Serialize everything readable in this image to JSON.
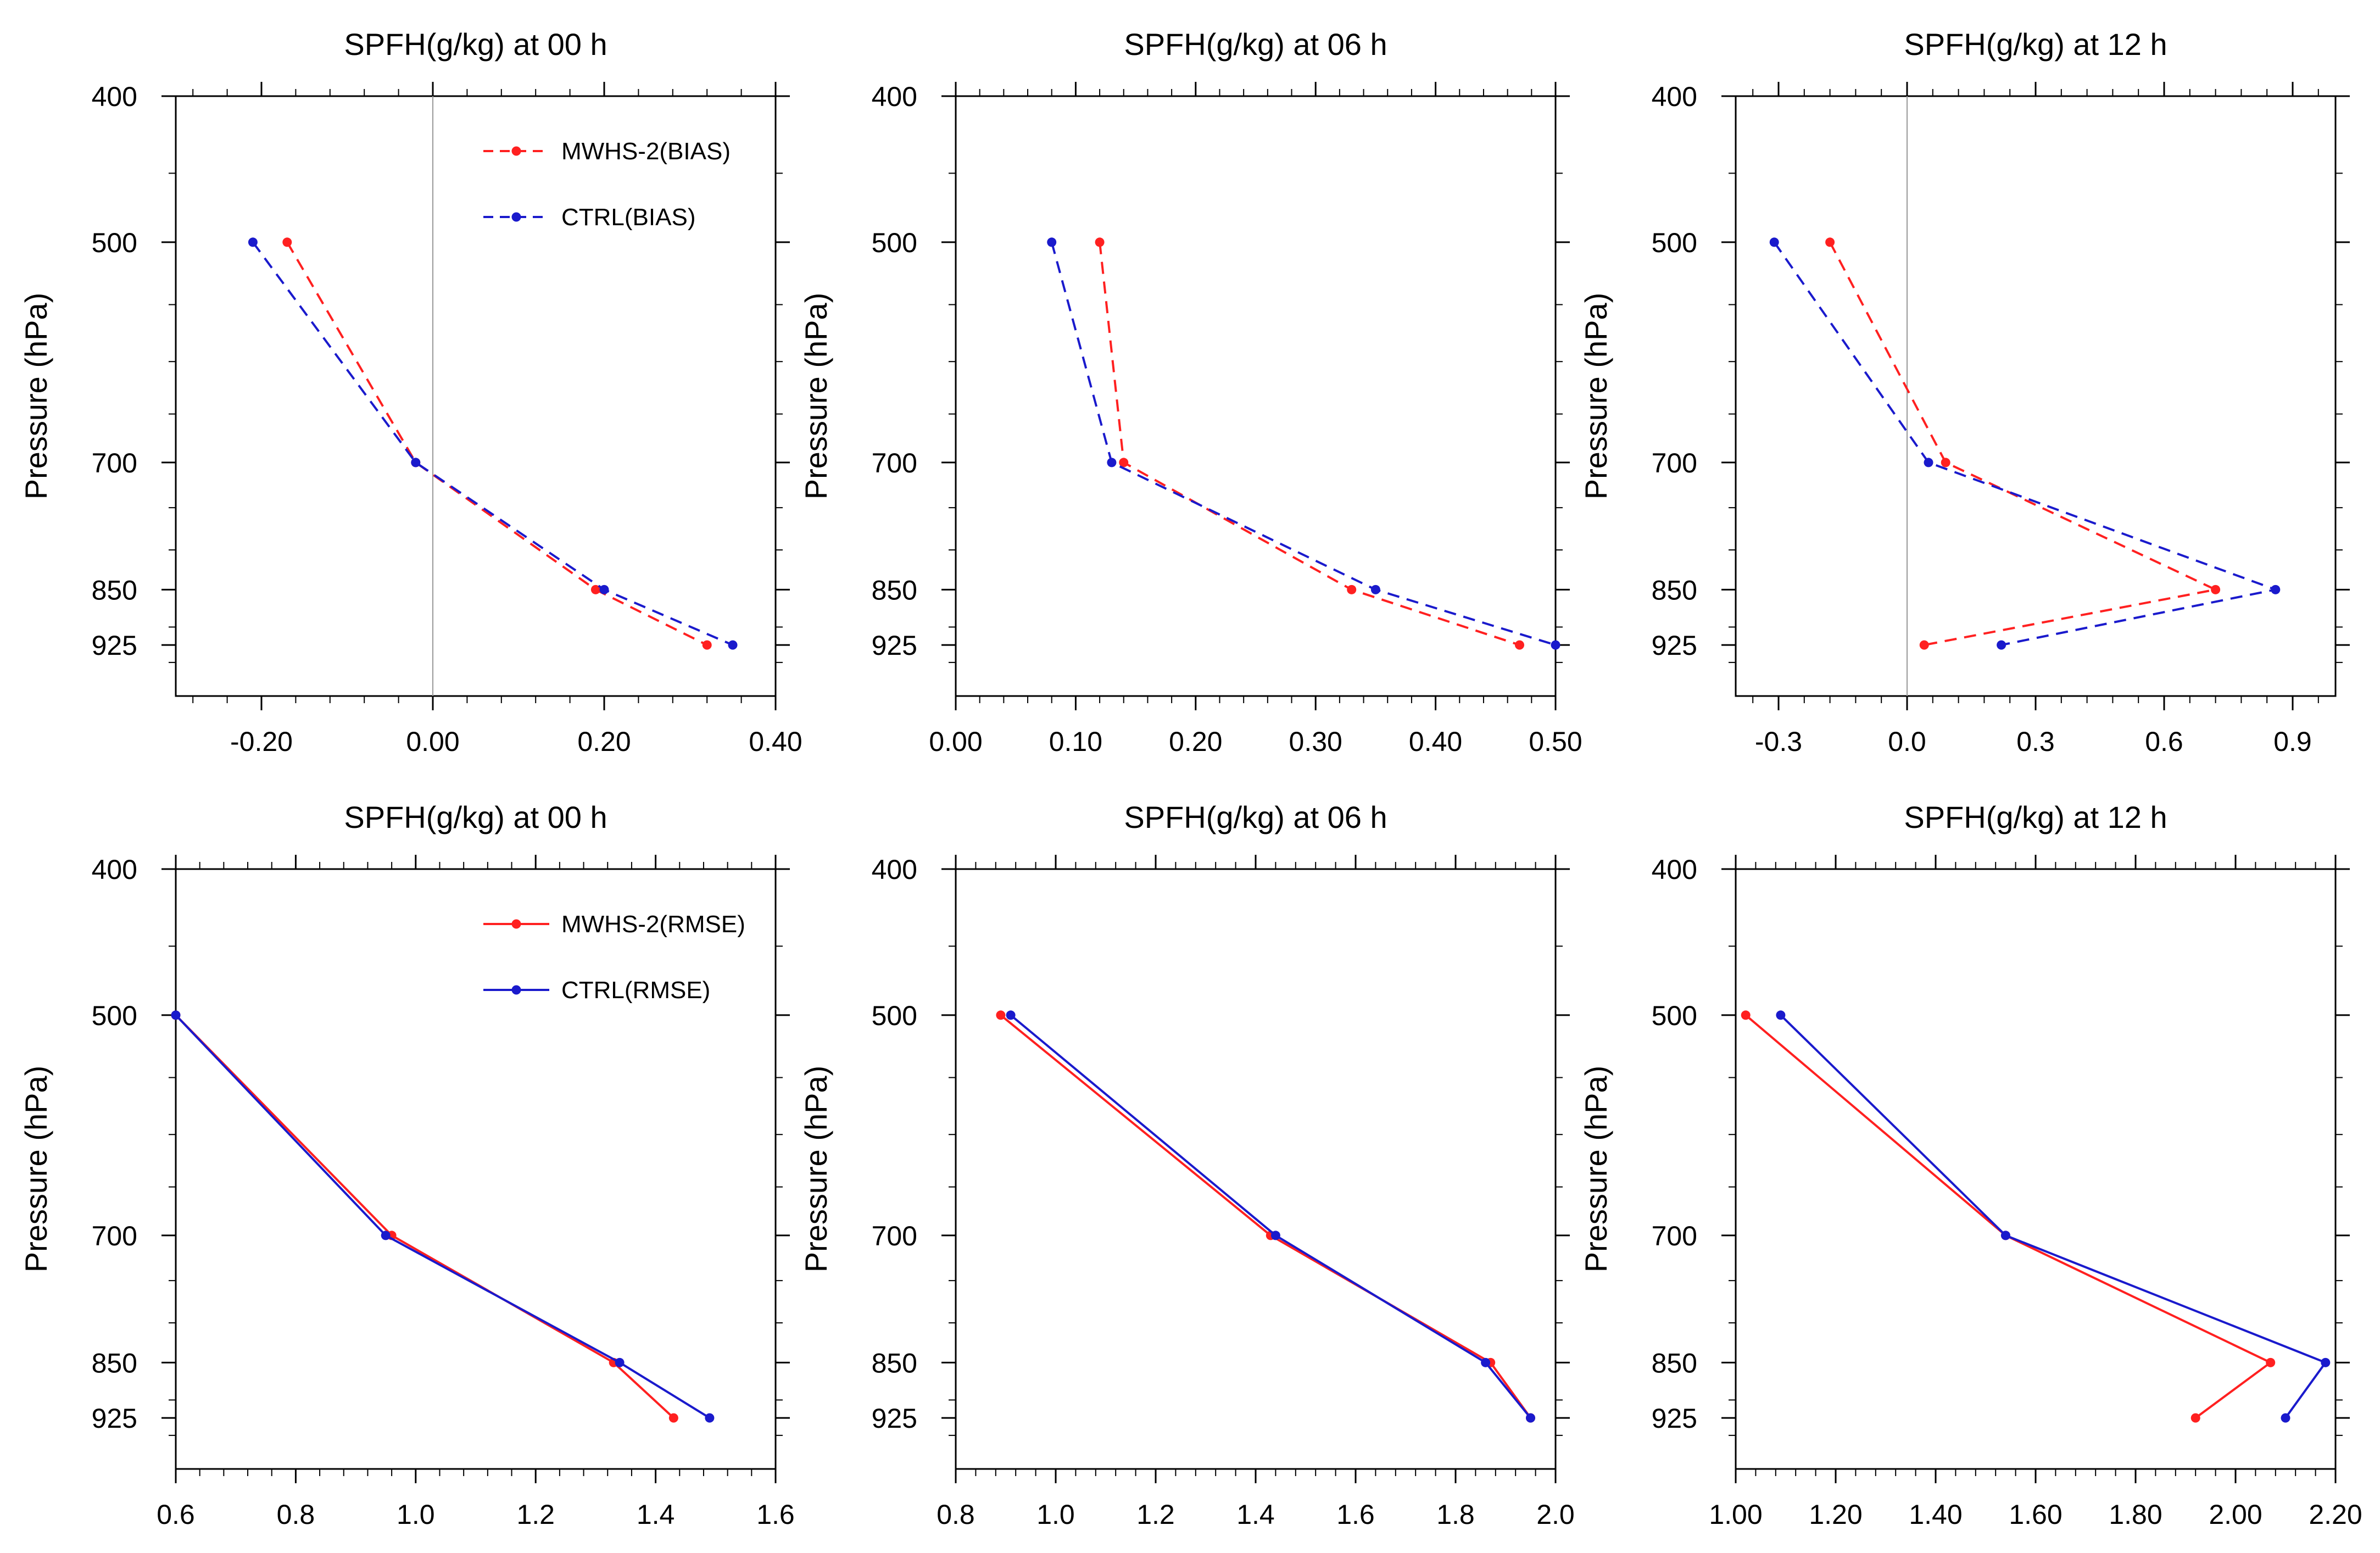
{
  "chart_data": [
    {
      "type": "line",
      "title": "SPFH(g/kg) at 00 h",
      "xlabel": "",
      "ylabel": "Pressure (hPa)",
      "xlim": [
        -0.3,
        0.4
      ],
      "xticks": [
        "-0.20",
        "0.00",
        "0.20",
        "0.40"
      ],
      "xtick_values": [
        -0.2,
        0.0,
        0.2,
        0.4
      ],
      "zero_line": true,
      "dashed": true,
      "ylim": [
        400,
        1000
      ],
      "yticks": [
        400,
        500,
        700,
        850,
        925
      ],
      "legend": "top-right",
      "series": [
        {
          "name": "MWHS-2(BIAS)",
          "color": "#ff2020",
          "x": [
            -0.17,
            -0.02,
            0.19,
            0.32
          ],
          "y": [
            500,
            700,
            850,
            925
          ]
        },
        {
          "name": "CTRL(BIAS)",
          "color": "#1a1acc",
          "x": [
            -0.21,
            -0.02,
            0.2,
            0.35
          ],
          "y": [
            500,
            700,
            850,
            925
          ]
        }
      ]
    },
    {
      "type": "line",
      "title": "SPFH(g/kg) at 06 h",
      "xlabel": "",
      "ylabel": "Pressure (hPa)",
      "xlim": [
        0.0,
        0.5
      ],
      "xticks": [
        "0.00",
        "0.10",
        "0.20",
        "0.30",
        "0.40",
        "0.50"
      ],
      "xtick_values": [
        0.0,
        0.1,
        0.2,
        0.3,
        0.4,
        0.5
      ],
      "zero_line": false,
      "dashed": true,
      "ylim": [
        400,
        1000
      ],
      "yticks": [
        400,
        500,
        700,
        850,
        925
      ],
      "series": [
        {
          "name": "MWHS-2(BIAS)",
          "color": "#ff2020",
          "x": [
            0.12,
            0.14,
            0.33,
            0.47
          ],
          "y": [
            500,
            700,
            850,
            925
          ]
        },
        {
          "name": "CTRL(BIAS)",
          "color": "#1a1acc",
          "x": [
            0.08,
            0.13,
            0.35,
            0.5
          ],
          "y": [
            500,
            700,
            850,
            925
          ]
        }
      ]
    },
    {
      "type": "line",
      "title": "SPFH(g/kg) at 12 h",
      "xlabel": "",
      "ylabel": "Pressure (hPa)",
      "xlim": [
        -0.4,
        1.0
      ],
      "xticks": [
        "-0.3",
        "0.0",
        "0.3",
        "0.6",
        "0.9"
      ],
      "xtick_values": [
        -0.3,
        0.0,
        0.3,
        0.6,
        0.9
      ],
      "zero_line": true,
      "dashed": true,
      "ylim": [
        400,
        1000
      ],
      "yticks": [
        400,
        500,
        700,
        850,
        925
      ],
      "series": [
        {
          "name": "MWHS-2(BIAS)",
          "color": "#ff2020",
          "x": [
            -0.18,
            0.09,
            0.72,
            0.04
          ],
          "y": [
            500,
            700,
            850,
            925
          ]
        },
        {
          "name": "CTRL(BIAS)",
          "color": "#1a1acc",
          "x": [
            -0.31,
            0.05,
            0.86,
            0.22
          ],
          "y": [
            500,
            700,
            850,
            925
          ]
        }
      ]
    },
    {
      "type": "line",
      "title": "SPFH(g/kg) at 00 h",
      "xlabel": "",
      "ylabel": "Pressure (hPa)",
      "xlim": [
        0.6,
        1.6
      ],
      "xticks": [
        "0.6",
        "0.8",
        "1.0",
        "1.2",
        "1.4",
        "1.6"
      ],
      "xtick_values": [
        0.6,
        0.8,
        1.0,
        1.2,
        1.4,
        1.6
      ],
      "zero_line": false,
      "dashed": false,
      "ylim": [
        400,
        1000
      ],
      "yticks": [
        400,
        500,
        700,
        850,
        925
      ],
      "legend": "top-right",
      "series": [
        {
          "name": "MWHS-2(RMSE)",
          "color": "#ff2020",
          "x": [
            0.6,
            0.96,
            1.33,
            1.43
          ],
          "y": [
            500,
            700,
            850,
            925
          ]
        },
        {
          "name": "CTRL(RMSE)",
          "color": "#1a1acc",
          "x": [
            0.6,
            0.95,
            1.34,
            1.49
          ],
          "y": [
            500,
            700,
            850,
            925
          ]
        }
      ]
    },
    {
      "type": "line",
      "title": "SPFH(g/kg) at 06 h",
      "xlabel": "",
      "ylabel": "Pressure (hPa)",
      "xlim": [
        0.8,
        2.0
      ],
      "xticks": [
        "0.8",
        "1.0",
        "1.2",
        "1.4",
        "1.6",
        "1.8",
        "2.0"
      ],
      "xtick_values": [
        0.8,
        1.0,
        1.2,
        1.4,
        1.6,
        1.8,
        2.0
      ],
      "zero_line": false,
      "dashed": false,
      "ylim": [
        400,
        1000
      ],
      "yticks": [
        400,
        500,
        700,
        850,
        925
      ],
      "series": [
        {
          "name": "MWHS-2(RMSE)",
          "color": "#ff2020",
          "x": [
            0.89,
            1.43,
            1.87,
            1.95
          ],
          "y": [
            500,
            700,
            850,
            925
          ]
        },
        {
          "name": "CTRL(RMSE)",
          "color": "#1a1acc",
          "x": [
            0.91,
            1.44,
            1.86,
            1.95
          ],
          "y": [
            500,
            700,
            850,
            925
          ]
        }
      ]
    },
    {
      "type": "line",
      "title": "SPFH(g/kg) at 12 h",
      "xlabel": "",
      "ylabel": "Pressure (hPa)",
      "xlim": [
        1.0,
        2.2
      ],
      "xticks": [
        "1.00",
        "1.20",
        "1.40",
        "1.60",
        "1.80",
        "2.00",
        "2.20"
      ],
      "xtick_values": [
        1.0,
        1.2,
        1.4,
        1.6,
        1.8,
        2.0,
        2.2
      ],
      "zero_line": false,
      "dashed": false,
      "ylim": [
        400,
        1000
      ],
      "yticks": [
        400,
        500,
        700,
        850,
        925
      ],
      "series": [
        {
          "name": "MWHS-2(RMSE)",
          "color": "#ff2020",
          "x": [
            1.02,
            1.54,
            2.07,
            1.92
          ],
          "y": [
            500,
            700,
            850,
            925
          ]
        },
        {
          "name": "CTRL(RMSE)",
          "color": "#1a1acc",
          "x": [
            1.09,
            1.54,
            2.18,
            2.1
          ],
          "y": [
            500,
            700,
            850,
            925
          ]
        }
      ]
    }
  ]
}
